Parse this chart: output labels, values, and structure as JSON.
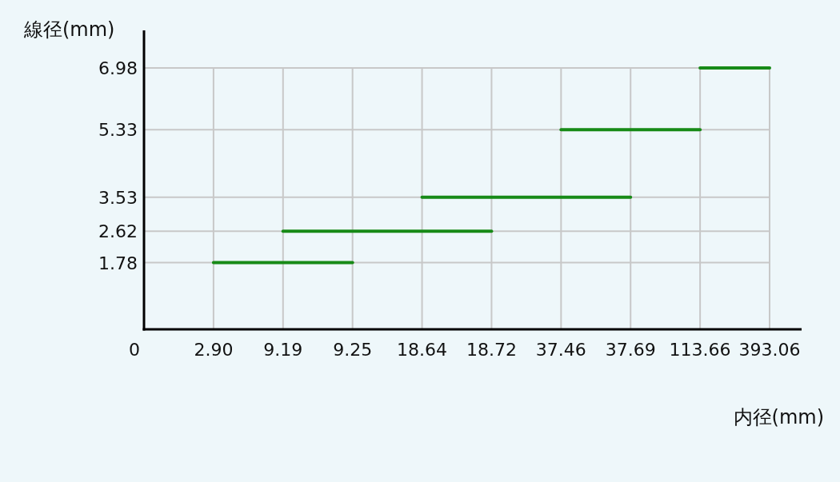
{
  "chart_data": {
    "type": "line",
    "xlabel": "内径(mm)",
    "ylabel": "線径(mm)",
    "categories": [
      "0",
      "2.90",
      "9.19",
      "9.25",
      "18.64",
      "18.72",
      "37.46",
      "37.69",
      "113.66",
      "393.06"
    ],
    "ylim": [
      0,
      6.98
    ],
    "grid": true,
    "yticks": [
      1.78,
      2.62,
      3.53,
      5.33,
      6.98
    ],
    "series": [
      {
        "color": "#178a17",
        "values": [
          null,
          1.78,
          null,
          1.78,
          null,
          null,
          null,
          null,
          null,
          null
        ]
      },
      {
        "color": "#178a17",
        "values": [
          null,
          null,
          2.62,
          null,
          null,
          2.62,
          null,
          null,
          null,
          null
        ]
      },
      {
        "color": "#178a17",
        "values": [
          null,
          null,
          null,
          null,
          3.53,
          null,
          null,
          3.53,
          null,
          null
        ]
      },
      {
        "color": "#178a17",
        "values": [
          null,
          null,
          null,
          null,
          null,
          null,
          5.33,
          null,
          5.33,
          null
        ]
      },
      {
        "color": "#178a17",
        "values": [
          null,
          null,
          null,
          null,
          null,
          null,
          null,
          null,
          6.98,
          6.98
        ]
      }
    ]
  }
}
